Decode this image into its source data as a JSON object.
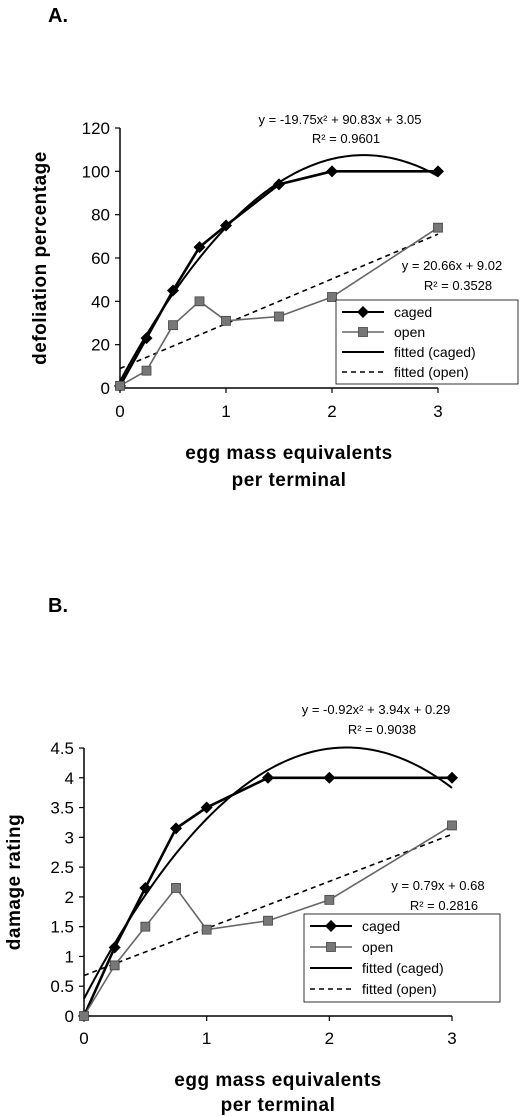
{
  "chart_data": [
    {
      "panel": "A.",
      "type": "line",
      "xlabel": [
        "egg  mass  equivalents",
        "per  terminal"
      ],
      "ylabel": "defoliation  percentage",
      "xlim": [
        0,
        3
      ],
      "ylim": [
        0,
        120
      ],
      "xticks": [
        "0",
        "1",
        "2",
        "3"
      ],
      "yticks": [
        "0",
        "20",
        "40",
        "60",
        "80",
        "100",
        "120"
      ],
      "series": [
        {
          "name": "caged",
          "x": [
            0,
            0.25,
            0.5,
            0.75,
            1,
            1.5,
            2,
            3
          ],
          "y": [
            1,
            23,
            45,
            65,
            75,
            94,
            100,
            100
          ]
        },
        {
          "name": "open",
          "x": [
            0,
            0.25,
            0.5,
            0.75,
            1,
            1.5,
            2,
            3
          ],
          "y": [
            1,
            8,
            29,
            40,
            31,
            33,
            42,
            74
          ]
        }
      ],
      "fits": [
        {
          "name": "fitted (caged)",
          "kind": "quadratic",
          "coef": [
            -19.75,
            90.83,
            3.05
          ]
        },
        {
          "name": "fitted (open)",
          "kind": "linear",
          "coef": [
            20.66,
            9.02
          ]
        }
      ],
      "equations": [
        {
          "eq": "y = -19.75x² + 90.83x + 3.05",
          "r2": "R² = 0.9601"
        },
        {
          "eq": "y = 20.66x + 9.02",
          "r2": "R² = 0.3528"
        }
      ],
      "legend": [
        "caged",
        "open",
        "fitted (caged)",
        "fitted (open)"
      ],
      "legend_position": "bottom-right",
      "grid": false
    },
    {
      "panel": "B.",
      "type": "line",
      "xlabel": [
        "egg  mass  equivalents",
        "per  terminal"
      ],
      "ylabel": "damage  rating",
      "xlim": [
        0,
        3
      ],
      "ylim": [
        0,
        4.5
      ],
      "xticks": [
        "0",
        "1",
        "2",
        "3"
      ],
      "yticks": [
        "0",
        "0.5",
        "1",
        "1.5",
        "2",
        "2.5",
        "3",
        "3.5",
        "4",
        "4.5"
      ],
      "series": [
        {
          "name": "caged",
          "x": [
            0,
            0.25,
            0.5,
            0.75,
            1,
            1.5,
            2,
            3
          ],
          "y": [
            0,
            1.15,
            2.15,
            3.15,
            3.5,
            4,
            4,
            4
          ]
        },
        {
          "name": "open",
          "x": [
            0,
            0.25,
            0.5,
            0.75,
            1,
            1.5,
            2,
            3
          ],
          "y": [
            0,
            0.85,
            1.5,
            2.15,
            1.45,
            1.6,
            1.95,
            3.2
          ]
        }
      ],
      "fits": [
        {
          "name": "fitted (caged)",
          "kind": "quadratic",
          "coef": [
            -0.92,
            3.94,
            0.29
          ]
        },
        {
          "name": "fitted (open)",
          "kind": "linear",
          "coef": [
            0.79,
            0.68
          ]
        }
      ],
      "equations": [
        {
          "eq": "y = -0.92x² + 3.94x + 0.29",
          "r2": "R² = 0.9038"
        },
        {
          "eq": "y = 0.79x + 0.68",
          "r2": "R² = 0.2816"
        }
      ],
      "legend": [
        "caged",
        "open",
        "fitted (caged)",
        "fitted (open)"
      ],
      "legend_position": "bottom-right",
      "grid": false
    }
  ]
}
